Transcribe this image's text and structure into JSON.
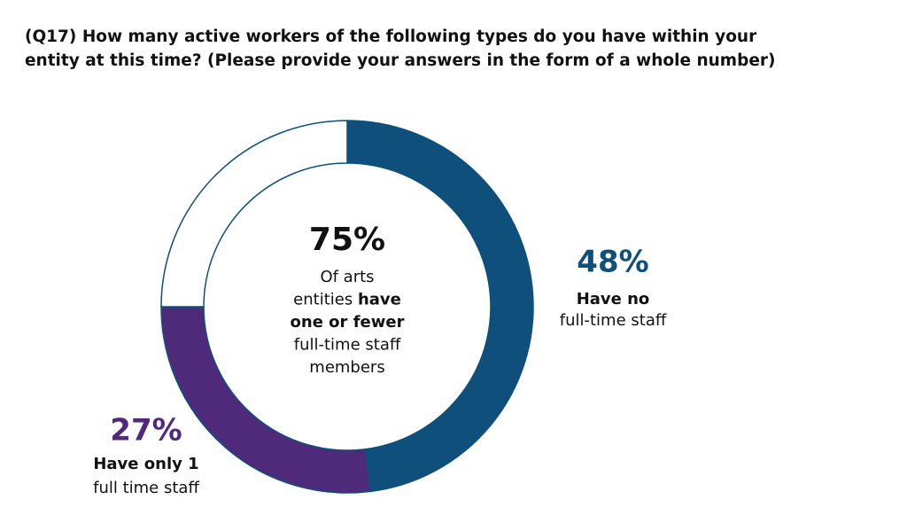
{
  "chart_data": {
    "type": "donut",
    "title": [
      "(Q17) How many active workers of the following types do you have within your",
      "entity at this time? (Please provide your answers in the form of a whole number)"
    ],
    "values": [
      48,
      27,
      25
    ],
    "value_labels": [
      "48%",
      "27%",
      null
    ],
    "colors": [
      "#0f4f7c",
      "#4f2a7a",
      "#ffffff"
    ],
    "outline_color": "#0f4f7c",
    "label_lines": [
      [
        "Have no",
        "full-time staff"
      ],
      [
        "Have only 1",
        "full time staff"
      ],
      null
    ],
    "center": {
      "value": 75,
      "label": "75%",
      "lines": [
        [
          {
            "text": "Of arts"
          }
        ],
        [
          {
            "text": "entities "
          },
          {
            "text": "have",
            "bold": true
          }
        ],
        [
          {
            "text": "one or fewer",
            "bold": true
          }
        ],
        [
          {
            "text": "full-time staff"
          }
        ],
        [
          {
            "text": "members"
          }
        ]
      ]
    }
  }
}
